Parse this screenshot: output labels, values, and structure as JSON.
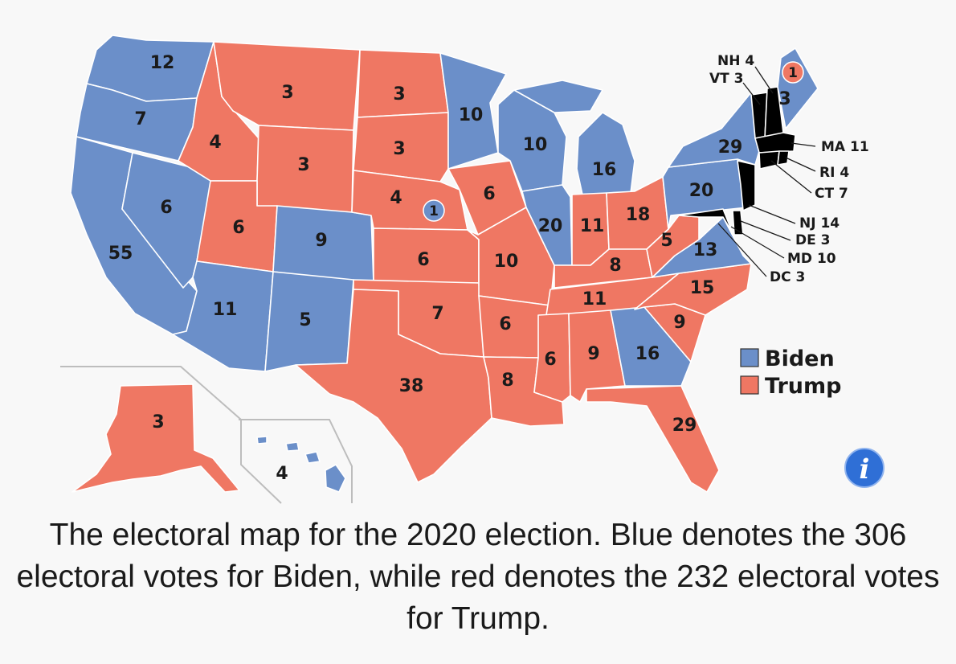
{
  "map": {
    "colors": {
      "biden": "#6b8fc9",
      "trump": "#ef7763"
    },
    "states": [
      {
        "abbr": "WA",
        "ev": "12",
        "party": "biden"
      },
      {
        "abbr": "OR",
        "ev": "7",
        "party": "biden"
      },
      {
        "abbr": "CA",
        "ev": "55",
        "party": "biden"
      },
      {
        "abbr": "NV",
        "ev": "6",
        "party": "biden"
      },
      {
        "abbr": "ID",
        "ev": "4",
        "party": "trump"
      },
      {
        "abbr": "MT",
        "ev": "3",
        "party": "trump"
      },
      {
        "abbr": "WY",
        "ev": "3",
        "party": "trump"
      },
      {
        "abbr": "UT",
        "ev": "6",
        "party": "trump"
      },
      {
        "abbr": "AZ",
        "ev": "11",
        "party": "biden"
      },
      {
        "abbr": "CO",
        "ev": "9",
        "party": "biden"
      },
      {
        "abbr": "NM",
        "ev": "5",
        "party": "biden"
      },
      {
        "abbr": "ND",
        "ev": "3",
        "party": "trump"
      },
      {
        "abbr": "SD",
        "ev": "3",
        "party": "trump"
      },
      {
        "abbr": "NE",
        "ev": "4",
        "party": "trump"
      },
      {
        "abbr": "NE2",
        "ev": "1",
        "party": "biden"
      },
      {
        "abbr": "KS",
        "ev": "6",
        "party": "trump"
      },
      {
        "abbr": "OK",
        "ev": "7",
        "party": "trump"
      },
      {
        "abbr": "TX",
        "ev": "38",
        "party": "trump"
      },
      {
        "abbr": "MN",
        "ev": "10",
        "party": "biden"
      },
      {
        "abbr": "IA",
        "ev": "6",
        "party": "trump"
      },
      {
        "abbr": "MO",
        "ev": "10",
        "party": "trump"
      },
      {
        "abbr": "AR",
        "ev": "6",
        "party": "trump"
      },
      {
        "abbr": "LA",
        "ev": "8",
        "party": "trump"
      },
      {
        "abbr": "WI",
        "ev": "10",
        "party": "biden"
      },
      {
        "abbr": "IL",
        "ev": "20",
        "party": "biden"
      },
      {
        "abbr": "MI",
        "ev": "16",
        "party": "biden"
      },
      {
        "abbr": "IN",
        "ev": "11",
        "party": "trump"
      },
      {
        "abbr": "OH",
        "ev": "18",
        "party": "trump"
      },
      {
        "abbr": "KY",
        "ev": "8",
        "party": "trump"
      },
      {
        "abbr": "TN",
        "ev": "11",
        "party": "trump"
      },
      {
        "abbr": "MS",
        "ev": "6",
        "party": "trump"
      },
      {
        "abbr": "AL",
        "ev": "9",
        "party": "trump"
      },
      {
        "abbr": "GA",
        "ev": "16",
        "party": "biden"
      },
      {
        "abbr": "FL",
        "ev": "29",
        "party": "trump"
      },
      {
        "abbr": "SC",
        "ev": "9",
        "party": "trump"
      },
      {
        "abbr": "NC",
        "ev": "15",
        "party": "trump"
      },
      {
        "abbr": "VA",
        "ev": "13",
        "party": "biden"
      },
      {
        "abbr": "WV",
        "ev": "5",
        "party": "trump"
      },
      {
        "abbr": "PA",
        "ev": "20",
        "party": "biden"
      },
      {
        "abbr": "NY",
        "ev": "29",
        "party": "biden"
      },
      {
        "abbr": "ME",
        "ev": "3",
        "party": "biden"
      },
      {
        "abbr": "ME2",
        "ev": "1",
        "party": "trump"
      },
      {
        "abbr": "AK",
        "ev": "3",
        "party": "trump"
      },
      {
        "abbr": "HI",
        "ev": "4",
        "party": "biden"
      }
    ],
    "callouts": {
      "nh": "NH 4",
      "vt": "VT 3",
      "ma": "MA 11",
      "ri": "RI 4",
      "ct": "CT 7",
      "nj": "NJ 14",
      "de": "DE 3",
      "md": "MD 10",
      "dc": "DC 3"
    },
    "legend": {
      "biden": "Biden",
      "trump": "Trump"
    },
    "info_icon": "info-icon"
  },
  "caption": "The electoral map for the 2020 election. Blue denotes the 306 electoral votes for Biden, while red denotes the 232 electoral votes for Trump."
}
